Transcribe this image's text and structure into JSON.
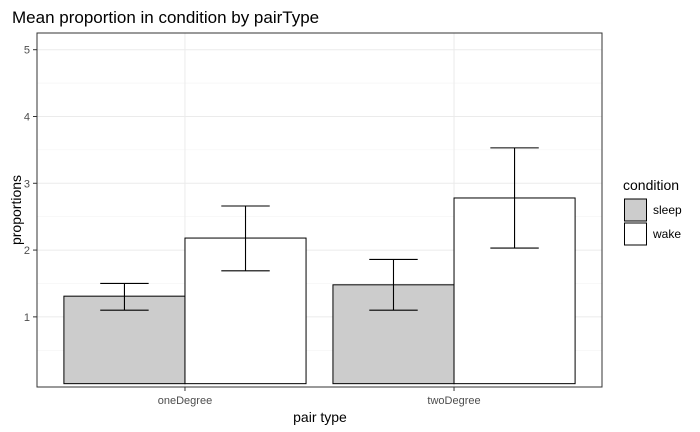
{
  "chart_data": {
    "type": "bar",
    "title": "Mean proportion in condition by pairType",
    "xlabel": "pair type",
    "ylabel": "proportions",
    "categories": [
      "oneDegree",
      "twoDegree"
    ],
    "ylim": [
      -0.05,
      5.25
    ],
    "yticks": [
      1,
      2,
      3,
      4,
      5
    ],
    "grid": true,
    "legend": {
      "title": "condition",
      "position": "right"
    },
    "series": [
      {
        "name": "sleep",
        "color": "#cccccc",
        "values": [
          1.31,
          1.48
        ],
        "err_low": [
          1.1,
          1.1
        ],
        "err_high": [
          1.5,
          1.86
        ]
      },
      {
        "name": "wake",
        "color": "#ffffff",
        "values": [
          2.18,
          2.78
        ],
        "err_low": [
          1.69,
          2.03
        ],
        "err_high": [
          2.66,
          3.53
        ]
      }
    ]
  }
}
